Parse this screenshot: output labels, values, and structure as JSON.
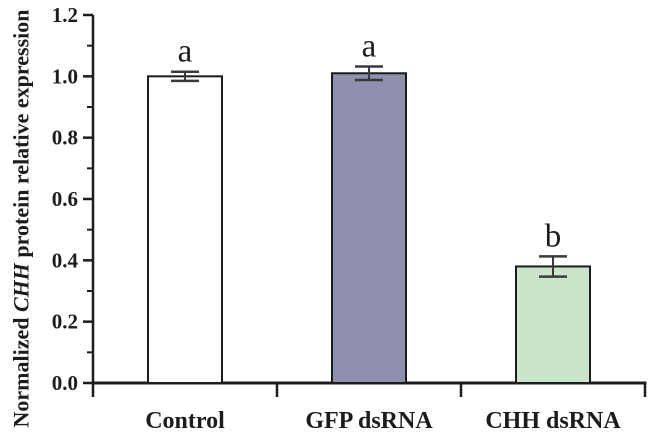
{
  "chart_data": {
    "type": "bar",
    "title": "",
    "ylabel_prefix": "Normalized ",
    "ylabel_italic": "CHH",
    "ylabel_suffix": " protein relative expression",
    "xlabel": "",
    "categories": [
      "Control",
      "GFP dsRNA",
      "CHH dsRNA"
    ],
    "values": [
      1.0,
      1.01,
      0.38
    ],
    "errors": [
      0.015,
      0.022,
      0.033
    ],
    "sig_letters": [
      "a",
      "a",
      "b"
    ],
    "bar_fills": [
      "#ffffff",
      "#8f8fb0",
      "#cbe5cc"
    ],
    "bar_stroke": "#1c1c1c",
    "errorbar_color": "#3a3a3a",
    "axis_color": "#1c1c1c",
    "ylim": [
      0.0,
      1.2
    ],
    "ytick_major_step": 0.2,
    "ytick_minor_step": 0.1,
    "ytick_labels": [
      "0.0",
      "0.2",
      "0.4",
      "0.6",
      "0.8",
      "1.0",
      "1.2"
    ],
    "grid": false,
    "legend": null
  }
}
